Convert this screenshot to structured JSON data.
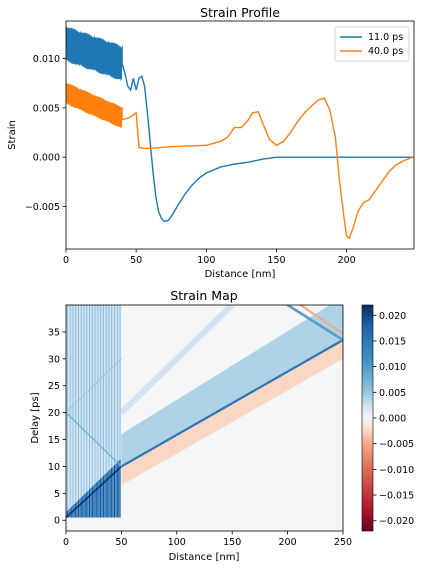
{
  "chart_data": [
    {
      "type": "line",
      "title": "Strain Profile",
      "xlabel": "Distance [nm]",
      "ylabel": "Strain",
      "xlim": [
        0,
        248
      ],
      "ylim": [
        -0.0093,
        0.0138
      ],
      "xticks": [
        0,
        50,
        100,
        150,
        200
      ],
      "yticks": [
        -0.005,
        0.0,
        0.005,
        0.01
      ],
      "ytick_labels": [
        "−0.005",
        "0.000",
        "0.005",
        "0.010"
      ],
      "legend_position": "top-right",
      "grid": false,
      "series": [
        {
          "name": "11.0 ps",
          "color": "#1f77b4",
          "oscillation": {
            "x_range": [
              0,
              40
            ],
            "center_start": 0.0115,
            "center_end": 0.0095,
            "amplitude": 0.0018,
            "period_nm": 1.1
          },
          "x": [
            40,
            42,
            44,
            46,
            48,
            50,
            52,
            54,
            56,
            58,
            60,
            62,
            64,
            66,
            68,
            70,
            73,
            76,
            80,
            85,
            90,
            95,
            100,
            110,
            120,
            130,
            140,
            145,
            150,
            160,
            180,
            200,
            220,
            248
          ],
          "y": [
            0.0095,
            0.0085,
            0.0072,
            0.0068,
            0.008,
            0.0068,
            0.008,
            0.0082,
            0.0072,
            0.0045,
            0.0015,
            -0.0015,
            -0.004,
            -0.0055,
            -0.0062,
            -0.0065,
            -0.0064,
            -0.0058,
            -0.0048,
            -0.0037,
            -0.0028,
            -0.0021,
            -0.0016,
            -0.001,
            -0.0007,
            -0.0005,
            -0.0002,
            -0.0001,
            0.0,
            0.0,
            0.0,
            0.0,
            0.0,
            0.0
          ]
        },
        {
          "name": "40.0 ps",
          "color": "#ff7f0e",
          "oscillation": {
            "x_range": [
              0,
              40
            ],
            "center_start": 0.0065,
            "center_end": 0.004,
            "amplitude": 0.0011,
            "period_nm": 1.1
          },
          "x": [
            40,
            45,
            50,
            52,
            55,
            60,
            70,
            80,
            100,
            110,
            115,
            120,
            125,
            130,
            133,
            137,
            140,
            145,
            150,
            155,
            160,
            165,
            170,
            175,
            180,
            184,
            188,
            192,
            195,
            198,
            200,
            202,
            205,
            208,
            212,
            216,
            220,
            225,
            230,
            235,
            240,
            245,
            248
          ],
          "y": [
            0.0038,
            0.004,
            0.0045,
            0.001,
            0.0009,
            0.0009,
            0.001,
            0.0011,
            0.0012,
            0.0016,
            0.002,
            0.003,
            0.003,
            0.0038,
            0.0045,
            0.0046,
            0.0035,
            0.0018,
            0.0012,
            0.0016,
            0.0025,
            0.0036,
            0.0045,
            0.0052,
            0.0058,
            0.006,
            0.0048,
            0.002,
            -0.0025,
            -0.006,
            -0.008,
            -0.0082,
            -0.007,
            -0.0055,
            -0.0046,
            -0.0043,
            -0.0035,
            -0.0025,
            -0.0015,
            -0.0008,
            -0.0004,
            -0.0001,
            0.0
          ]
        }
      ]
    },
    {
      "type": "heatmap",
      "title": "Strain Map",
      "xlabel": "Distance [nm]",
      "ylabel": "Delay [ps]",
      "xlim": [
        0,
        250
      ],
      "ylim": [
        -2,
        40
      ],
      "xticks": [
        0,
        50,
        100,
        150,
        200,
        250
      ],
      "yticks": [
        0,
        5,
        10,
        15,
        20,
        25,
        30,
        35
      ],
      "colormap": "RdBu",
      "colorbar": {
        "range": [
          -0.022,
          0.022
        ],
        "ticks": [
          -0.02,
          -0.015,
          -0.01,
          -0.005,
          0.0,
          0.005,
          0.01,
          0.015,
          0.02
        ],
        "tick_labels": [
          "−0.020",
          "−0.015",
          "−0.010",
          "−0.005",
          "0.000",
          "0.005",
          "0.010",
          "0.015",
          "0.020"
        ]
      },
      "colors": {
        "positive": "#08306b",
        "zero": "#f7f7f7",
        "negative": "#67001f"
      },
      "features": {
        "oscillating_layer_nm": [
          0,
          50
        ],
        "compressive_front_start": [
          50,
          10
        ],
        "compressive_front_end": [
          250,
          33.5
        ],
        "reflected_front_start": [
          250,
          33.5
        ],
        "reflected_front_end": [
          200,
          40
        ]
      }
    }
  ]
}
